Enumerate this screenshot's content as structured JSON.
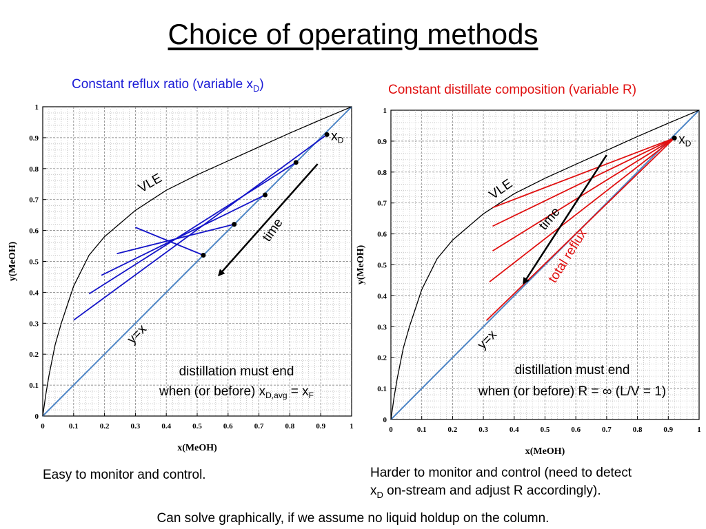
{
  "slide": {
    "title": "Choice of operating methods",
    "left_subtitle": "Constant reflux ratio (variable x",
    "left_subtitle_sub": "D",
    "left_subtitle_end": ")",
    "right_subtitle": "Constant distillate composition (variable R)",
    "left_note": "Easy to monitor and control.",
    "right_note_line1": "Harder to monitor and control (need to detect",
    "right_note_line2_pre": "x",
    "right_note_line2_sub": "D",
    "right_note_line2_post": " on-stream and adjust R accordingly).",
    "footnote": "Can solve graphically, if we assume no liquid holdup on the column."
  },
  "chart_data": [
    {
      "type": "line",
      "xlabel": "x(MeOH)",
      "ylabel": "y(MeOH)",
      "xlim": [
        0,
        1
      ],
      "ylim": [
        0,
        1
      ],
      "xticks": [
        "0",
        "0.1",
        "0.2",
        "0.3",
        "0.4",
        "0.5",
        "0.6",
        "0.7",
        "0.8",
        "0.9",
        "1"
      ],
      "yticks": [
        "0",
        "0.1",
        "0.2",
        "0.3",
        "0.4",
        "0.5",
        "0.6",
        "0.7",
        "0.8",
        "0.9",
        "1"
      ],
      "grid": true,
      "vle": {
        "label": "VLE",
        "x": [
          0,
          0.01,
          0.02,
          0.04,
          0.06,
          0.08,
          0.1,
          0.15,
          0.2,
          0.3,
          0.4,
          0.5,
          0.6,
          0.7,
          0.8,
          0.9,
          0.95,
          1.0
        ],
        "y": [
          0,
          0.07,
          0.13,
          0.23,
          0.3,
          0.36,
          0.42,
          0.52,
          0.58,
          0.665,
          0.73,
          0.78,
          0.825,
          0.87,
          0.915,
          0.958,
          0.979,
          1.0
        ]
      },
      "diagonal_label": "y=x",
      "operating_lines": [
        {
          "x": [
            0.1,
            0.92
          ],
          "y": [
            0.31,
            0.91
          ]
        },
        {
          "x": [
            0.15,
            0.82
          ],
          "y": [
            0.395,
            0.82
          ]
        },
        {
          "x": [
            0.19,
            0.72
          ],
          "y": [
            0.455,
            0.715
          ]
        },
        {
          "x": [
            0.24,
            0.62
          ],
          "y": [
            0.525,
            0.62
          ]
        },
        {
          "x": [
            0.3,
            0.52
          ],
          "y": [
            0.61,
            0.52
          ]
        }
      ],
      "line_color": "#1414c8",
      "distillate_points": {
        "x": [
          0.92,
          0.82,
          0.72,
          0.62,
          0.52
        ],
        "y": [
          0.91,
          0.82,
          0.715,
          0.62,
          0.52
        ]
      },
      "xd_label": "x",
      "xd_label_sub": "D",
      "arrow": {
        "x": [
          0.89,
          0.57
        ],
        "y": [
          0.815,
          0.455
        ],
        "label": "time"
      },
      "note_line1": "distillation must end",
      "note_line2_pre": "when (or before) x",
      "note_line2_sub": "D,avg",
      "note_line2_mid": " = x",
      "note_line2_sub2": "F"
    },
    {
      "type": "line",
      "xlabel": "x(MeOH)",
      "ylabel": "y(MeOH)",
      "xlim": [
        0,
        1
      ],
      "ylim": [
        0,
        1
      ],
      "xticks": [
        "0",
        "0.1",
        "0.2",
        "0.3",
        "0.4",
        "0.5",
        "0.6",
        "0.7",
        "0.8",
        "0.9",
        "1"
      ],
      "yticks": [
        "0",
        "0.1",
        "0.2",
        "0.3",
        "0.4",
        "0.5",
        "0.6",
        "0.7",
        "0.8",
        "0.9",
        "1"
      ],
      "grid": true,
      "vle": {
        "label": "VLE",
        "x": [
          0,
          0.01,
          0.02,
          0.04,
          0.06,
          0.08,
          0.1,
          0.15,
          0.2,
          0.3,
          0.4,
          0.5,
          0.6,
          0.7,
          0.8,
          0.9,
          0.95,
          1.0
        ],
        "y": [
          0,
          0.07,
          0.13,
          0.23,
          0.3,
          0.36,
          0.42,
          0.52,
          0.58,
          0.665,
          0.73,
          0.78,
          0.825,
          0.87,
          0.915,
          0.958,
          0.979,
          1.0
        ]
      },
      "diagonal_label": "y=x",
      "operating_lines": [
        {
          "x": [
            0.92,
            0.33
          ],
          "y": [
            0.91,
            0.685
          ]
        },
        {
          "x": [
            0.92,
            0.33
          ],
          "y": [
            0.91,
            0.625
          ]
        },
        {
          "x": [
            0.92,
            0.33
          ],
          "y": [
            0.91,
            0.545
          ]
        },
        {
          "x": [
            0.92,
            0.32
          ],
          "y": [
            0.91,
            0.445
          ]
        },
        {
          "x": [
            0.92,
            0.31
          ],
          "y": [
            0.91,
            0.32
          ]
        }
      ],
      "line_color": "#e01010",
      "distillate_points": {
        "x": [
          0.92
        ],
        "y": [
          0.91
        ]
      },
      "xd_label": "x",
      "xd_label_sub": "D",
      "arrow": {
        "x": [
          0.7,
          0.43
        ],
        "y": [
          0.855,
          0.44
        ],
        "label": "time"
      },
      "total_reflux_label": "total reflux",
      "note_line1": "distillation must end",
      "note_line2": "when (or before) R = ∞  (L/V = 1)"
    }
  ]
}
